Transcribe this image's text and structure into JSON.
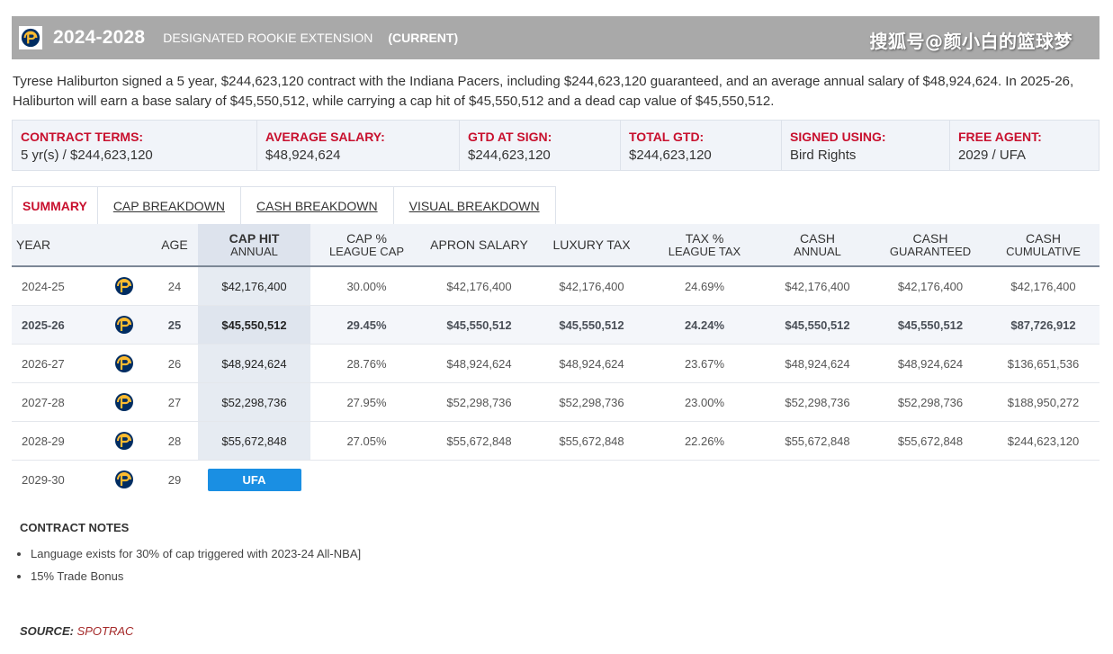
{
  "header": {
    "years": "2024-2028",
    "contract_type": "DESIGNATED ROOKIE EXTENSION",
    "status": "(CURRENT)",
    "watermark": "搜狐号@颜小白的篮球梦"
  },
  "summary": "Tyrese Haliburton signed a 5 year, $244,623,120 contract with the Indiana Pacers, including $244,623,120 guaranteed, and an average annual salary of $48,924,624. In 2025-26, Haliburton will earn a base salary of $45,550,512, while carrying a cap hit of $45,550,512 and a dead cap value of $45,550,512.",
  "terms": [
    {
      "label": "CONTRACT TERMS:",
      "value": "5 yr(s) / $244,623,120"
    },
    {
      "label": "AVERAGE SALARY:",
      "value": "$48,924,624"
    },
    {
      "label": "GTD AT SIGN:",
      "value": "$244,623,120"
    },
    {
      "label": "TOTAL GTD:",
      "value": "$244,623,120"
    },
    {
      "label": "SIGNED USING:",
      "value": "Bird Rights"
    },
    {
      "label": "FREE AGENT:",
      "value": "2029 / UFA"
    }
  ],
  "tabs": [
    {
      "label": "SUMMARY",
      "active": true
    },
    {
      "label": "CAP BREAKDOWN",
      "active": false
    },
    {
      "label": "CASH BREAKDOWN",
      "active": false
    },
    {
      "label": "VISUAL BREAKDOWN",
      "active": false
    }
  ],
  "table": {
    "headers": {
      "year": "YEAR",
      "age": "AGE",
      "cap_hit": {
        "top": "CAP HIT",
        "sub": "ANNUAL"
      },
      "cap_pct": {
        "top": "CAP %",
        "sub": "LEAGUE CAP"
      },
      "apron": "APRON SALARY",
      "luxury": "LUXURY TAX",
      "tax_pct": {
        "top": "TAX %",
        "sub": "LEAGUE TAX"
      },
      "cash_annual": {
        "top": "CASH",
        "sub": "ANNUAL"
      },
      "cash_gtd": {
        "top": "CASH",
        "sub": "GUARANTEED"
      },
      "cash_cum": {
        "top": "CASH",
        "sub": "CUMULATIVE"
      }
    },
    "rows": [
      {
        "year": "2024-25",
        "age": "24",
        "cap_hit": "$42,176,400",
        "cap_pct": "30.00%",
        "apron": "$42,176,400",
        "luxury": "$42,176,400",
        "tax_pct": "24.69%",
        "cash_annual": "$42,176,400",
        "cash_gtd": "$42,176,400",
        "cash_cum": "$42,176,400"
      },
      {
        "year": "2025-26",
        "age": "25",
        "cap_hit": "$45,550,512",
        "cap_pct": "29.45%",
        "apron": "$45,550,512",
        "luxury": "$45,550,512",
        "tax_pct": "24.24%",
        "cash_annual": "$45,550,512",
        "cash_gtd": "$45,550,512",
        "cash_cum": "$87,726,912"
      },
      {
        "year": "2026-27",
        "age": "26",
        "cap_hit": "$48,924,624",
        "cap_pct": "28.76%",
        "apron": "$48,924,624",
        "luxury": "$48,924,624",
        "tax_pct": "23.67%",
        "cash_annual": "$48,924,624",
        "cash_gtd": "$48,924,624",
        "cash_cum": "$136,651,536"
      },
      {
        "year": "2027-28",
        "age": "27",
        "cap_hit": "$52,298,736",
        "cap_pct": "27.95%",
        "apron": "$52,298,736",
        "luxury": "$52,298,736",
        "tax_pct": "23.00%",
        "cash_annual": "$52,298,736",
        "cash_gtd": "$52,298,736",
        "cash_cum": "$188,950,272"
      },
      {
        "year": "2028-29",
        "age": "28",
        "cap_hit": "$55,672,848",
        "cap_pct": "27.05%",
        "apron": "$55,672,848",
        "luxury": "$55,672,848",
        "tax_pct": "22.26%",
        "cash_annual": "$55,672,848",
        "cash_gtd": "$55,672,848",
        "cash_cum": "$244,623,120"
      }
    ],
    "fa_row": {
      "year": "2029-30",
      "age": "29",
      "badge": "UFA"
    },
    "team_icon": "pacers-logo-icon",
    "colors": {
      "brand_navy": "#002d62",
      "brand_gold": "#fdbb30",
      "accent_red": "#c8102e",
      "badge_blue": "#1a8fe3"
    }
  },
  "notes": {
    "title": "CONTRACT NOTES",
    "items": [
      "Language exists for 30% of cap triggered with 2023-24 All-NBA]",
      "15% Trade Bonus"
    ]
  },
  "source": {
    "label": "SOURCE:",
    "value": "SPOTRAC"
  }
}
